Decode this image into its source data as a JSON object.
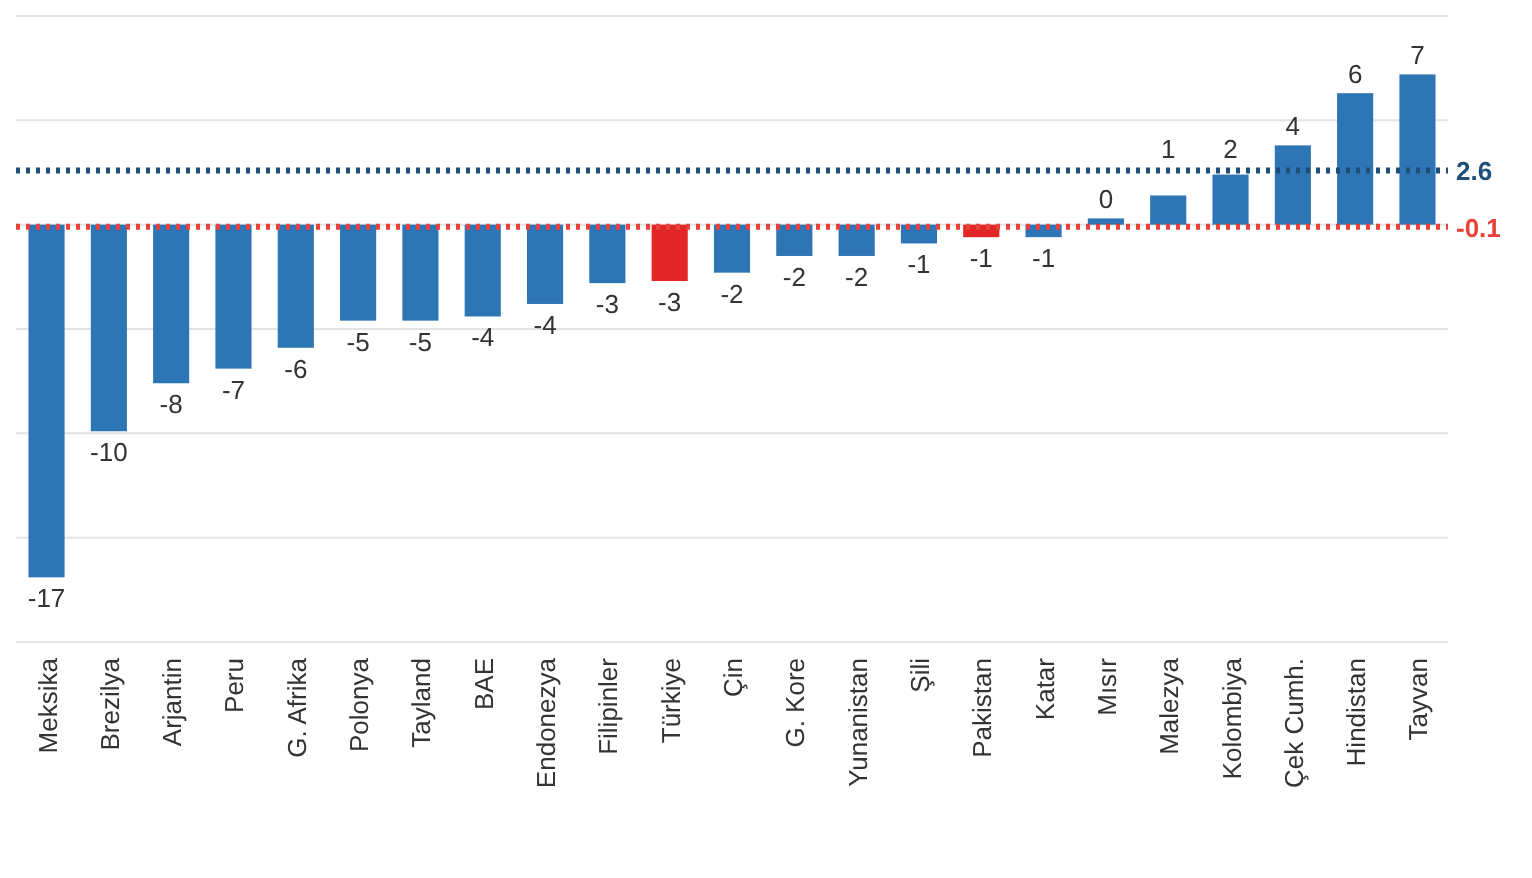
{
  "chart_data": {
    "type": "bar",
    "categories": [
      "Meksika",
      "Brezilya",
      "Arjantin",
      "Peru",
      "G. Afrika",
      "Polonya",
      "Tayland",
      "BAE",
      "Endonezya",
      "Filipinler",
      "Türkiye",
      "Çin",
      "G. Kore",
      "Yunanistan",
      "Şili",
      "Pakistan",
      "Katar",
      "Mısır",
      "Malezya",
      "Kolombiya",
      "Çek Cumh.",
      "Hindistan",
      "Tayvan"
    ],
    "values": [
      -16.9,
      -9.9,
      -7.6,
      -6.9,
      -5.9,
      -4.6,
      -4.6,
      -4.4,
      -3.8,
      -2.8,
      -2.7,
      -2.3,
      -1.5,
      -1.5,
      -0.9,
      -0.6,
      -0.6,
      0.3,
      1.4,
      2.4,
      3.8,
      6.3,
      7.2
    ],
    "value_labels": [
      "-17",
      "-10",
      "-8",
      "-7",
      "-6",
      "-5",
      "-5",
      "-4",
      "-4",
      "-3",
      "-3",
      "-2",
      "-2",
      "-2",
      "-1",
      "-1",
      "-1",
      "0",
      "1",
      "2",
      "4",
      "6",
      "7"
    ],
    "colors": [
      "#2e75b6",
      "#2e75b6",
      "#2e75b6",
      "#2e75b6",
      "#2e75b6",
      "#2e75b6",
      "#2e75b6",
      "#2e75b6",
      "#2e75b6",
      "#2e75b6",
      "#e32727",
      "#2e75b6",
      "#2e75b6",
      "#2e75b6",
      "#2e75b6",
      "#e32727",
      "#2e75b6",
      "#2e75b6",
      "#2e75b6",
      "#2e75b6",
      "#2e75b6",
      "#2e75b6",
      "#2e75b6"
    ],
    "ylim": [
      -20,
      10
    ],
    "yticks": [
      {
        "value": -20,
        "label": null
      },
      {
        "value": -15,
        "label": null
      },
      {
        "value": -10,
        "label": null
      },
      {
        "value": -5,
        "label": null
      },
      {
        "value": 0,
        "label": null
      },
      {
        "value": 5,
        "label": null
      },
      {
        "value": 10,
        "label": null
      }
    ],
    "grid": "y",
    "tick_labels": "x",
    "ref_lines": [
      {
        "axis": "y",
        "value": -0.1,
        "label": "-0.1",
        "color": "#e8413b",
        "line_style": "dotted"
      },
      {
        "axis": "y",
        "value": 2.6,
        "label": "2.6",
        "color": "#1f4e79",
        "line_style": "dotted"
      }
    ]
  }
}
